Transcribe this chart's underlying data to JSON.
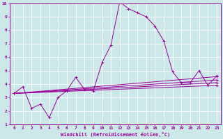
{
  "x": [
    0,
    1,
    2,
    3,
    4,
    5,
    6,
    7,
    8,
    9,
    10,
    11,
    12,
    13,
    14,
    15,
    16,
    17,
    18,
    19,
    20,
    21,
    22,
    23
  ],
  "line1": [
    3.3,
    3.8,
    2.2,
    2.5,
    1.5,
    3.0,
    3.5,
    4.5,
    3.6,
    3.5,
    5.6,
    6.9,
    10.1,
    9.6,
    9.3,
    9.0,
    8.3,
    7.2,
    4.9,
    4.1,
    4.1,
    5.0,
    3.9,
    4.6
  ],
  "straight_lines": [
    {
      "x0": 0,
      "y0": 3.3,
      "x1": 23,
      "y1": 4.55
    },
    {
      "x0": 0,
      "y0": 3.3,
      "x1": 23,
      "y1": 4.3
    },
    {
      "x0": 0,
      "y0": 3.3,
      "x1": 23,
      "y1": 4.1
    },
    {
      "x0": 0,
      "y0": 3.3,
      "x1": 23,
      "y1": 3.9
    }
  ],
  "color": "#990099",
  "bg_color": "#cce8e8",
  "grid_color": "#ffffff",
  "xlabel": "Windchill (Refroidissement éolien,°C)",
  "xlim": [
    -0.5,
    23.5
  ],
  "ylim": [
    1,
    10
  ],
  "yticks": [
    1,
    2,
    3,
    4,
    5,
    6,
    7,
    8,
    9,
    10
  ],
  "xticks": [
    0,
    1,
    2,
    3,
    4,
    5,
    6,
    7,
    8,
    9,
    10,
    11,
    12,
    13,
    14,
    15,
    16,
    17,
    18,
    19,
    20,
    21,
    22,
    23
  ]
}
